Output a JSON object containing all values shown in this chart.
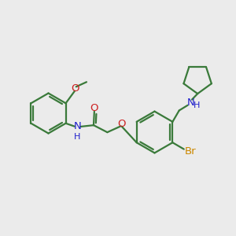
{
  "bg_color": "#ebebeb",
  "bond_color": "#3a7a3a",
  "n_color": "#2020cc",
  "o_color": "#cc2020",
  "br_color": "#cc8800",
  "line_width": 1.6,
  "figsize": [
    3.0,
    3.0
  ],
  "dpi": 100,
  "xlim": [
    0,
    10
  ],
  "ylim": [
    0,
    10
  ]
}
